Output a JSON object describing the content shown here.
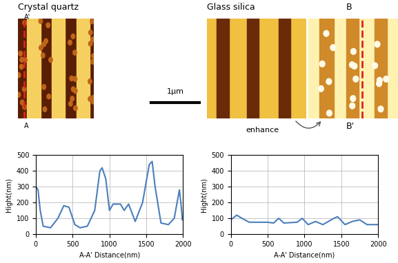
{
  "images": [
    {
      "title": "Crystal quartz",
      "labels": [
        "A'",
        "A"
      ]
    },
    {
      "title": "Glass silica",
      "labels": [
        "B",
        "B'"
      ],
      "annotation": "enhance"
    }
  ],
  "scale_bar": "1µm",
  "chart_data": [
    {
      "type": "line",
      "xlabel": "A-A' Distance(nm)",
      "ylabel": "Hight(nm)",
      "color": "#4a7ebb",
      "x": [
        0,
        30,
        60,
        100,
        200,
        300,
        380,
        450,
        530,
        600,
        700,
        800,
        870,
        900,
        950,
        1000,
        1050,
        1150,
        1200,
        1260,
        1350,
        1450,
        1540,
        1580,
        1620,
        1700,
        1800,
        1880,
        1950,
        1970,
        1990
      ],
      "values": [
        300,
        280,
        150,
        50,
        40,
        100,
        180,
        170,
        60,
        40,
        50,
        150,
        400,
        420,
        350,
        150,
        190,
        190,
        150,
        190,
        80,
        200,
        440,
        460,
        300,
        70,
        60,
        100,
        280,
        200,
        90
      ],
      "xlim": [
        0,
        2000
      ],
      "ylim": [
        0,
        500
      ],
      "xticks": [
        0,
        500,
        1000,
        1500,
        2000
      ],
      "yticks": [
        0,
        100,
        200,
        300,
        400,
        500
      ],
      "grid": true
    },
    {
      "type": "line",
      "xlabel": "A-A' Distance(nm)",
      "ylabel": "Hight(nm)",
      "color": "#4a7ebb",
      "x": [
        0,
        80,
        150,
        250,
        500,
        580,
        650,
        720,
        900,
        970,
        1050,
        1150,
        1250,
        1400,
        1450,
        1550,
        1650,
        1750,
        1850,
        2000
      ],
      "values": [
        90,
        120,
        100,
        75,
        75,
        70,
        100,
        70,
        75,
        100,
        60,
        80,
        60,
        100,
        110,
        60,
        80,
        90,
        60,
        60
      ],
      "xlim": [
        0,
        2000
      ],
      "ylim": [
        0,
        500
      ],
      "xticks": [
        0,
        500,
        1000,
        1500,
        2000
      ],
      "yticks": [
        0,
        100,
        200,
        300,
        400,
        500
      ],
      "grid": true
    }
  ]
}
